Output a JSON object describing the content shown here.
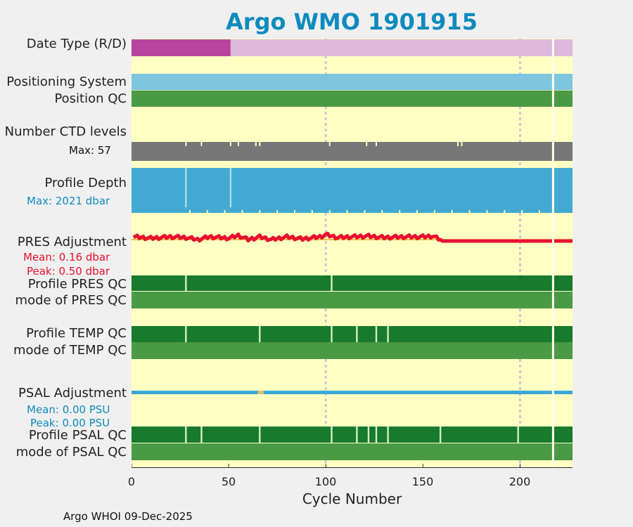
{
  "title": "Argo WMO 1901915",
  "xlabel": "Cycle Number",
  "footer": "Argo WHOI 09-Dec-2025",
  "colors": {
    "background": "#ffffc4",
    "delayed_mode": "#b8439e",
    "realtime": "#dcb8dc",
    "positioning": "#7ec5e0",
    "qc_good": "#4a9a45",
    "qc_profile": "#187a2c",
    "ctd": "#777777",
    "depth": "#42aad2",
    "pres": "#e8102e",
    "psal": "#3ba8d8",
    "title": "#0e8bbd"
  },
  "labels": {
    "date_type": "Date Type (R/D)",
    "positioning_system": "Positioning System",
    "position_qc": "Position QC",
    "ctd_levels": "Number CTD levels",
    "ctd_max": "Max: 57",
    "profile_depth": "Profile Depth",
    "depth_max": "Max: 2021 dbar",
    "pres_adjustment": "PRES Adjustment",
    "pres_mean": "Mean: 0.16 dbar",
    "pres_peak": "Peak: 0.50 dbar",
    "profile_pres_qc": "Profile PRES QC",
    "mode_pres_qc": "mode of PRES QC",
    "profile_temp_qc": "Profile TEMP QC",
    "mode_temp_qc": "mode of TEMP QC",
    "psal_adjustment": "PSAL Adjustment",
    "psal_mean": "Mean: 0.00 PSU",
    "psal_peak": "Peak: 0.00 PSU",
    "profile_psal_qc": "Profile PSAL QC",
    "mode_psal_qc": "mode of PSAL QC"
  },
  "chart_data": {
    "type": "bar",
    "x_range": [
      0,
      227
    ],
    "x_ticks": [
      0,
      50,
      100,
      150,
      200
    ],
    "vertical_gridlines": [
      100,
      200
    ],
    "cycles_total": 227,
    "missing_cycles": [
      217
    ],
    "date_type": {
      "delayed_until_cycle": 51,
      "delayed_label": "D",
      "realtime_label": "R"
    },
    "ctd_levels": {
      "max": 57,
      "reduced_cycles": [
        28,
        36,
        51,
        55,
        64,
        66,
        102,
        121,
        126,
        168,
        170
      ]
    },
    "profile_depth": {
      "max_dbar": 2021,
      "short_cycles": [
        28,
        51
      ]
    },
    "pres_adjustment": {
      "mean_dbar": 0.16,
      "peak_dbar": 0.5,
      "offset_profile": [
        [
          1,
          0.3
        ],
        [
          10,
          0.2
        ],
        [
          20,
          0.3
        ],
        [
          28,
          0.25
        ],
        [
          34,
          0.1
        ],
        [
          40,
          0.3
        ],
        [
          50,
          0.2
        ],
        [
          55,
          0.4
        ],
        [
          60,
          0.1
        ],
        [
          66,
          0.3
        ],
        [
          72,
          0.1
        ],
        [
          80,
          0.3
        ],
        [
          88,
          0.15
        ],
        [
          97,
          0.3
        ],
        [
          100,
          0.45
        ],
        [
          106,
          0.25
        ],
        [
          113,
          0.3
        ],
        [
          122,
          0.35
        ],
        [
          130,
          0.25
        ],
        [
          140,
          0.3
        ],
        [
          150,
          0.3
        ],
        [
          155,
          0.35
        ],
        [
          159,
          0.1
        ],
        [
          160,
          0.0
        ],
        [
          227,
          0.0
        ]
      ]
    },
    "pres_qc_flagged_cycles": [
      28,
      103
    ],
    "temp_qc_flagged_cycles": [
      28,
      66,
      103,
      116,
      126,
      132
    ],
    "psal_adjustment": {
      "mean_psu": 0.0,
      "peak_psu": 0.0
    },
    "psal_qc_flagged_cycles": [
      28,
      36,
      66,
      103,
      116,
      122,
      126,
      132,
      159,
      199
    ]
  }
}
